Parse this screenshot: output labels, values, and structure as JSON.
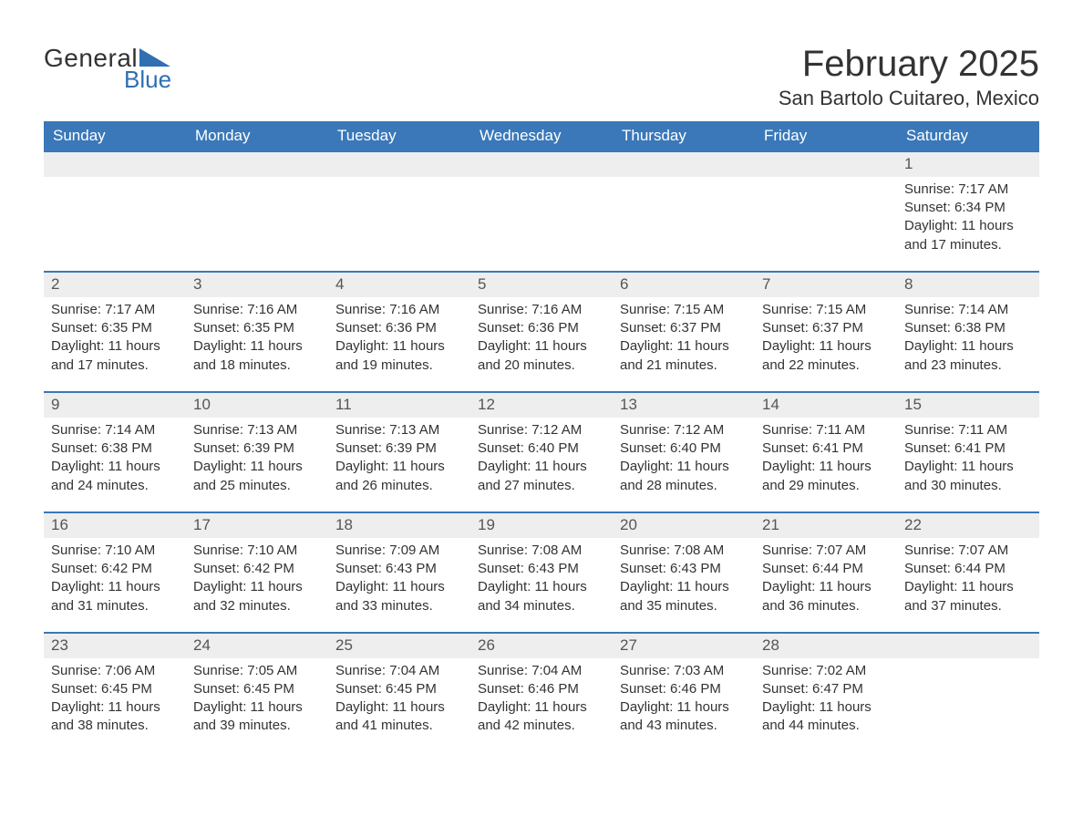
{
  "logo": {
    "word1": "General",
    "word2": "Blue"
  },
  "header": {
    "month_title": "February 2025",
    "location": "San Bartolo Cuitareo, Mexico"
  },
  "columns": [
    "Sunday",
    "Monday",
    "Tuesday",
    "Wednesday",
    "Thursday",
    "Friday",
    "Saturday"
  ],
  "colors": {
    "header_bg": "#3a78b9",
    "header_fg": "#ffffff",
    "row_sep": "#3a78b9",
    "daynum_bg": "#eeeeee",
    "text": "#333333",
    "logo_blue": "#2f6fb2"
  },
  "layout": {
    "font_family": "Segoe UI, Arial, sans-serif",
    "title_fontsize": 40,
    "location_fontsize": 22,
    "header_fontsize": 17,
    "body_fontsize": 15,
    "daynum_fontsize": 17
  },
  "weeks": [
    [
      null,
      null,
      null,
      null,
      null,
      null,
      {
        "n": "1",
        "sunrise": "Sunrise: 7:17 AM",
        "sunset": "Sunset: 6:34 PM",
        "day1": "Daylight: 11 hours",
        "day2": "and 17 minutes."
      }
    ],
    [
      {
        "n": "2",
        "sunrise": "Sunrise: 7:17 AM",
        "sunset": "Sunset: 6:35 PM",
        "day1": "Daylight: 11 hours",
        "day2": "and 17 minutes."
      },
      {
        "n": "3",
        "sunrise": "Sunrise: 7:16 AM",
        "sunset": "Sunset: 6:35 PM",
        "day1": "Daylight: 11 hours",
        "day2": "and 18 minutes."
      },
      {
        "n": "4",
        "sunrise": "Sunrise: 7:16 AM",
        "sunset": "Sunset: 6:36 PM",
        "day1": "Daylight: 11 hours",
        "day2": "and 19 minutes."
      },
      {
        "n": "5",
        "sunrise": "Sunrise: 7:16 AM",
        "sunset": "Sunset: 6:36 PM",
        "day1": "Daylight: 11 hours",
        "day2": "and 20 minutes."
      },
      {
        "n": "6",
        "sunrise": "Sunrise: 7:15 AM",
        "sunset": "Sunset: 6:37 PM",
        "day1": "Daylight: 11 hours",
        "day2": "and 21 minutes."
      },
      {
        "n": "7",
        "sunrise": "Sunrise: 7:15 AM",
        "sunset": "Sunset: 6:37 PM",
        "day1": "Daylight: 11 hours",
        "day2": "and 22 minutes."
      },
      {
        "n": "8",
        "sunrise": "Sunrise: 7:14 AM",
        "sunset": "Sunset: 6:38 PM",
        "day1": "Daylight: 11 hours",
        "day2": "and 23 minutes."
      }
    ],
    [
      {
        "n": "9",
        "sunrise": "Sunrise: 7:14 AM",
        "sunset": "Sunset: 6:38 PM",
        "day1": "Daylight: 11 hours",
        "day2": "and 24 minutes."
      },
      {
        "n": "10",
        "sunrise": "Sunrise: 7:13 AM",
        "sunset": "Sunset: 6:39 PM",
        "day1": "Daylight: 11 hours",
        "day2": "and 25 minutes."
      },
      {
        "n": "11",
        "sunrise": "Sunrise: 7:13 AM",
        "sunset": "Sunset: 6:39 PM",
        "day1": "Daylight: 11 hours",
        "day2": "and 26 minutes."
      },
      {
        "n": "12",
        "sunrise": "Sunrise: 7:12 AM",
        "sunset": "Sunset: 6:40 PM",
        "day1": "Daylight: 11 hours",
        "day2": "and 27 minutes."
      },
      {
        "n": "13",
        "sunrise": "Sunrise: 7:12 AM",
        "sunset": "Sunset: 6:40 PM",
        "day1": "Daylight: 11 hours",
        "day2": "and 28 minutes."
      },
      {
        "n": "14",
        "sunrise": "Sunrise: 7:11 AM",
        "sunset": "Sunset: 6:41 PM",
        "day1": "Daylight: 11 hours",
        "day2": "and 29 minutes."
      },
      {
        "n": "15",
        "sunrise": "Sunrise: 7:11 AM",
        "sunset": "Sunset: 6:41 PM",
        "day1": "Daylight: 11 hours",
        "day2": "and 30 minutes."
      }
    ],
    [
      {
        "n": "16",
        "sunrise": "Sunrise: 7:10 AM",
        "sunset": "Sunset: 6:42 PM",
        "day1": "Daylight: 11 hours",
        "day2": "and 31 minutes."
      },
      {
        "n": "17",
        "sunrise": "Sunrise: 7:10 AM",
        "sunset": "Sunset: 6:42 PM",
        "day1": "Daylight: 11 hours",
        "day2": "and 32 minutes."
      },
      {
        "n": "18",
        "sunrise": "Sunrise: 7:09 AM",
        "sunset": "Sunset: 6:43 PM",
        "day1": "Daylight: 11 hours",
        "day2": "and 33 minutes."
      },
      {
        "n": "19",
        "sunrise": "Sunrise: 7:08 AM",
        "sunset": "Sunset: 6:43 PM",
        "day1": "Daylight: 11 hours",
        "day2": "and 34 minutes."
      },
      {
        "n": "20",
        "sunrise": "Sunrise: 7:08 AM",
        "sunset": "Sunset: 6:43 PM",
        "day1": "Daylight: 11 hours",
        "day2": "and 35 minutes."
      },
      {
        "n": "21",
        "sunrise": "Sunrise: 7:07 AM",
        "sunset": "Sunset: 6:44 PM",
        "day1": "Daylight: 11 hours",
        "day2": "and 36 minutes."
      },
      {
        "n": "22",
        "sunrise": "Sunrise: 7:07 AM",
        "sunset": "Sunset: 6:44 PM",
        "day1": "Daylight: 11 hours",
        "day2": "and 37 minutes."
      }
    ],
    [
      {
        "n": "23",
        "sunrise": "Sunrise: 7:06 AM",
        "sunset": "Sunset: 6:45 PM",
        "day1": "Daylight: 11 hours",
        "day2": "and 38 minutes."
      },
      {
        "n": "24",
        "sunrise": "Sunrise: 7:05 AM",
        "sunset": "Sunset: 6:45 PM",
        "day1": "Daylight: 11 hours",
        "day2": "and 39 minutes."
      },
      {
        "n": "25",
        "sunrise": "Sunrise: 7:04 AM",
        "sunset": "Sunset: 6:45 PM",
        "day1": "Daylight: 11 hours",
        "day2": "and 41 minutes."
      },
      {
        "n": "26",
        "sunrise": "Sunrise: 7:04 AM",
        "sunset": "Sunset: 6:46 PM",
        "day1": "Daylight: 11 hours",
        "day2": "and 42 minutes."
      },
      {
        "n": "27",
        "sunrise": "Sunrise: 7:03 AM",
        "sunset": "Sunset: 6:46 PM",
        "day1": "Daylight: 11 hours",
        "day2": "and 43 minutes."
      },
      {
        "n": "28",
        "sunrise": "Sunrise: 7:02 AM",
        "sunset": "Sunset: 6:47 PM",
        "day1": "Daylight: 11 hours",
        "day2": "and 44 minutes."
      },
      null
    ]
  ]
}
